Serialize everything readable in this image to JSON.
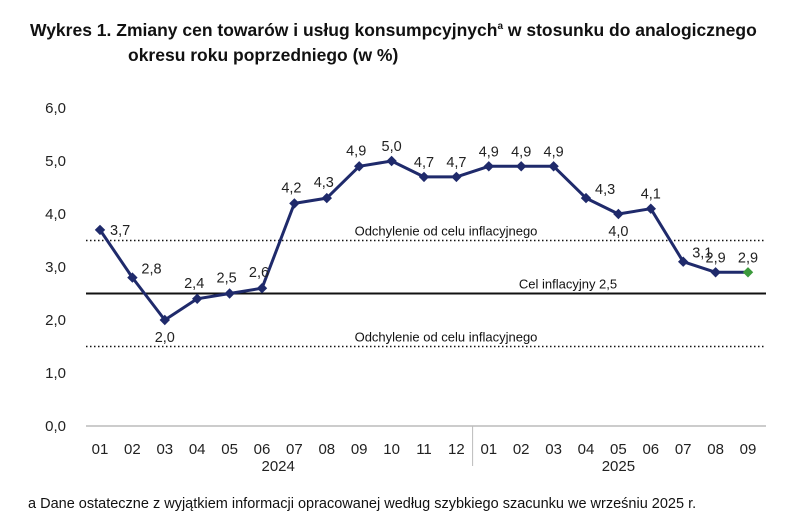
{
  "title_line1": "Wykres 1. Zmiany cen towarów i usług konsumpcyjnych",
  "title_sup": "a",
  "title_line1_end": " w stosunku do analogicznego",
  "title_line2": "okresu roku poprzedniego (w %)",
  "footnote": "a Dane ostateczne z wyjątkiem informacji opracowanej według szybkiego szacunku we wrześniu 2025 r.",
  "chart_data": {
    "type": "line",
    "categories": [
      "01",
      "02",
      "03",
      "04",
      "05",
      "06",
      "07",
      "08",
      "09",
      "10",
      "11",
      "12",
      "01",
      "02",
      "03",
      "04",
      "05",
      "06",
      "07",
      "08",
      "09"
    ],
    "year_groups": [
      {
        "label": "2024",
        "start": 0,
        "end": 11
      },
      {
        "label": "2025",
        "start": 12,
        "end": 20
      }
    ],
    "series": [
      {
        "values": [
          3.7,
          2.8,
          2.0,
          2.4,
          2.5,
          2.6,
          4.2,
          4.3,
          4.9,
          5.0,
          4.7,
          4.7,
          4.9,
          4.9,
          4.9,
          4.3,
          4.0,
          4.1,
          3.1,
          2.9,
          2.9
        ],
        "labels": [
          "3,7",
          "2,8",
          "2,0",
          "2,4",
          "2,5",
          "2,6",
          "4,2",
          "4,3",
          "4,9",
          "5,0",
          "4,7",
          "4,7",
          "4,9",
          "4,9",
          "4,9",
          "4,3",
          "4,0",
          "4,1",
          "3,1",
          "2,9",
          "2,9"
        ],
        "color": "#1f2a6b",
        "highlight_last_color": "#3c9a3c"
      }
    ],
    "ylim": [
      0,
      6
    ],
    "yticks": [
      0,
      1,
      2,
      3,
      4,
      5,
      6
    ],
    "ytick_labels": [
      "0,0",
      "1,0",
      "2,0",
      "3,0",
      "4,0",
      "5,0",
      "6,0"
    ],
    "reference_lines": [
      {
        "value": 3.5,
        "style": "dotted",
        "label": "Odchylenie od celu inflacyjnego"
      },
      {
        "value": 2.5,
        "style": "solid",
        "label": "Cel inflacyjny 2,5"
      },
      {
        "value": 1.5,
        "style": "dotted",
        "label": "Odchylenie od celu inflacyjnego"
      }
    ],
    "grid": false,
    "legend": "none"
  }
}
